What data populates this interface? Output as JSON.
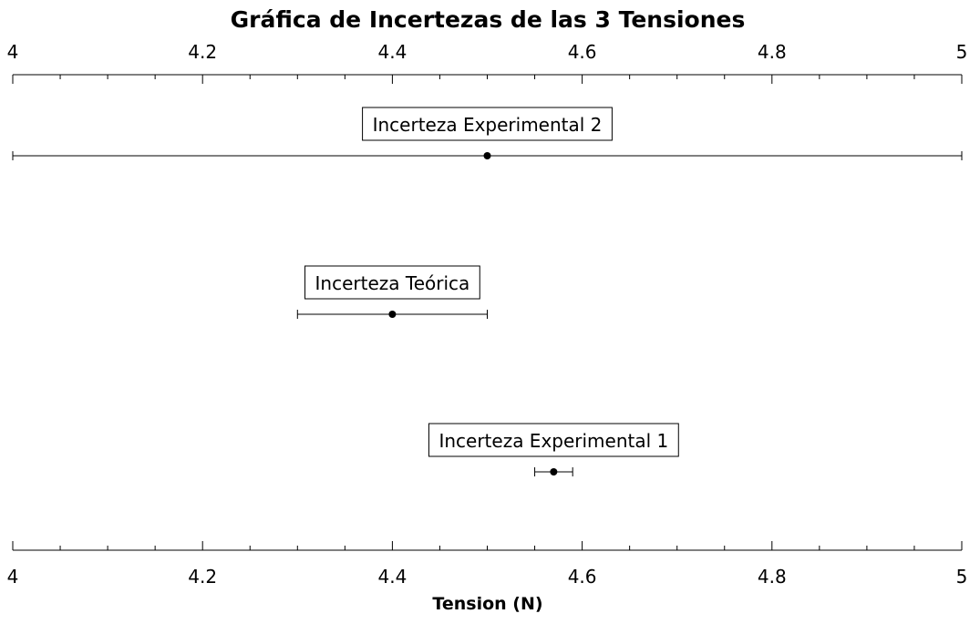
{
  "chart_data": {
    "type": "scatter",
    "title": "Gráfica de Incertezas de las 3 Tensiones",
    "xlabel": "Tension (N)",
    "ylabel": "",
    "xlim": [
      4,
      5
    ],
    "x_ticks": [
      "4",
      "4.2",
      "4.4",
      "4.6",
      "4.8",
      "5"
    ],
    "x_tick_values": [
      4,
      4.2,
      4.4,
      4.6,
      4.8,
      5
    ],
    "minor_tick_step": 0.05,
    "axes": "top-and-bottom",
    "grid": false,
    "series": [
      {
        "label": "Incerteza Experimental 2",
        "x": 4.5,
        "xerr_low": 4.0,
        "xerr_high": 5.0
      },
      {
        "label": "Incerteza Teórica",
        "x": 4.4,
        "xerr_low": 4.3,
        "xerr_high": 4.5
      },
      {
        "label": "Incerteza Experimental 1",
        "x": 4.57,
        "xerr_low": 4.55,
        "xerr_high": 4.59
      }
    ]
  }
}
